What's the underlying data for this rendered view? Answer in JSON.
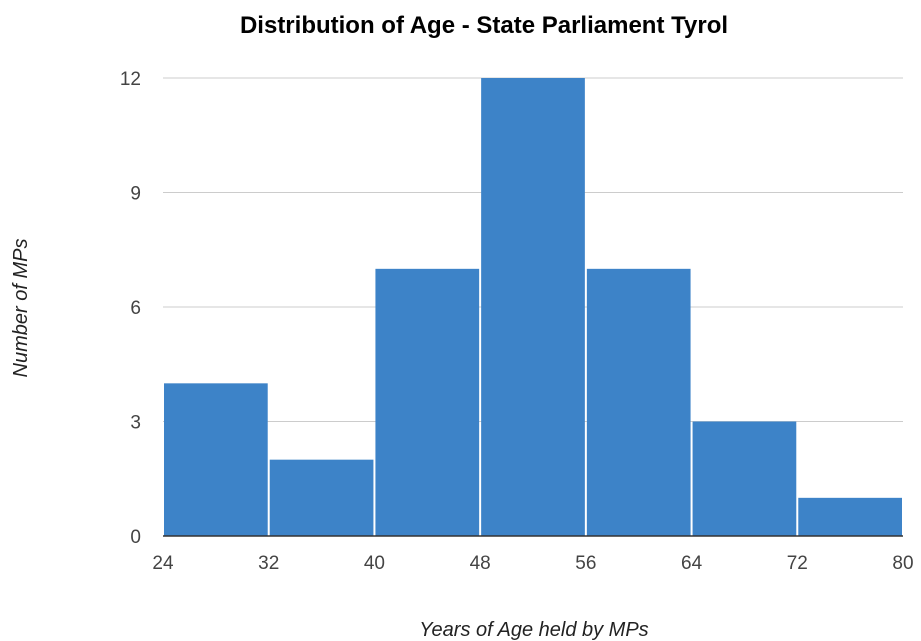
{
  "chart_data": {
    "type": "bar",
    "title": "Distribution of Age - State Parliament Tyrol",
    "xlabel": "Years of Age held by MPs",
    "ylabel": "Number of MPs",
    "bins": [
      {
        "from": 24,
        "to": 32,
        "count": 4
      },
      {
        "from": 32,
        "to": 40,
        "count": 2
      },
      {
        "from": 40,
        "to": 48,
        "count": 7
      },
      {
        "from": 48,
        "to": 56,
        "count": 12
      },
      {
        "from": 56,
        "to": 64,
        "count": 7
      },
      {
        "from": 64,
        "to": 72,
        "count": 3
      },
      {
        "from": 72,
        "to": 80,
        "count": 1
      }
    ],
    "x_ticks": [
      "24",
      "32",
      "40",
      "48",
      "56",
      "64",
      "72",
      "80"
    ],
    "y_ticks": [
      "0",
      "3",
      "6",
      "9",
      "12"
    ],
    "xlim": [
      24,
      80
    ],
    "ylim": [
      0,
      12
    ],
    "grid": true,
    "colors": {
      "bar": "#3d83c8",
      "grid": "#cccccc",
      "axis": "#333333",
      "tick_text": "#444444"
    }
  }
}
